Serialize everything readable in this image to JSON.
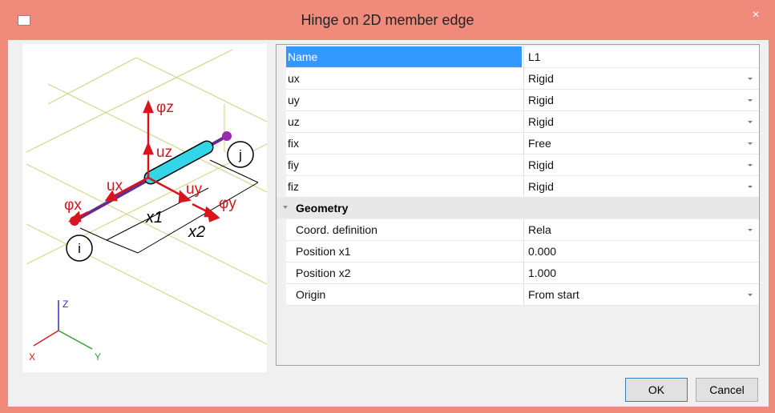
{
  "window": {
    "title": "Hinge on 2D member edge",
    "close": "×"
  },
  "diagram": {
    "labels": {
      "phiz": "φz",
      "uz": "uz",
      "ux": "ux",
      "uy": "uy",
      "phix": "φx",
      "phiy": "φy",
      "x1": "x1",
      "x2": "x2",
      "i": "i",
      "j": "j"
    },
    "axes": {
      "z": "Z",
      "x": "X",
      "y": "Y"
    }
  },
  "properties": {
    "rows": [
      {
        "name": "Name",
        "value": "L1",
        "dropdown": false
      },
      {
        "name": "ux",
        "value": "Rigid",
        "dropdown": true
      },
      {
        "name": "uy",
        "value": "Rigid",
        "dropdown": true
      },
      {
        "name": "uz",
        "value": "Rigid",
        "dropdown": true
      },
      {
        "name": "fix",
        "value": "Free",
        "dropdown": true
      },
      {
        "name": "fiy",
        "value": "Rigid",
        "dropdown": true
      },
      {
        "name": "fiz",
        "value": "Rigid",
        "dropdown": true
      }
    ],
    "section": "Geometry",
    "geometry_rows": [
      {
        "name": "Coord. definition",
        "value": "Rela",
        "dropdown": true
      },
      {
        "name": "Position x1",
        "value": "0.000",
        "dropdown": false
      },
      {
        "name": "Position x2",
        "value": "1.000",
        "dropdown": false
      },
      {
        "name": "Origin",
        "value": "From start",
        "dropdown": true
      }
    ]
  },
  "buttons": [
    "OK",
    "Cancel"
  ]
}
